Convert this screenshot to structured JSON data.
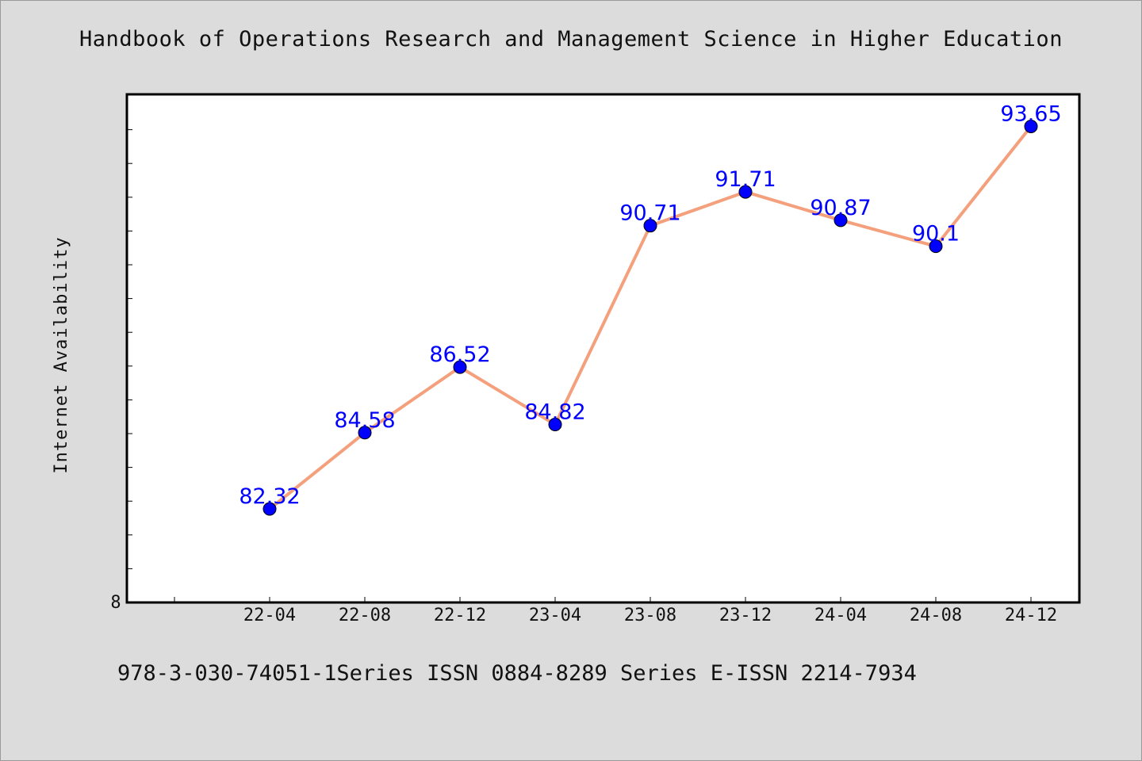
{
  "page": {
    "title": "Handbook of Operations Research and Management Science in Higher Education",
    "footer": "978-3-030-74051-1Series ISSN 0884-8289 Series E-ISSN 2214-7934"
  },
  "chart_data": {
    "type": "line",
    "title": "Handbook of Operations Research and Management Science in Higher Education",
    "xlabel": "",
    "ylabel": "Internet Availability",
    "categories": [
      "22-04",
      "22-08",
      "22-12",
      "23-04",
      "23-08",
      "23-12",
      "24-04",
      "24-08",
      "24-12"
    ],
    "series": [
      {
        "values": [
          82.32,
          84.58,
          86.52,
          84.82,
          90.71,
          91.71,
          90.87,
          90.1,
          93.65
        ]
      }
    ],
    "y_tick_label": "8",
    "ylim": [
      79.55,
      94.6
    ],
    "grid": false,
    "line_color": "#f4a07c",
    "marker_color": "#0000ff",
    "label_color": "#0000ff",
    "data_labels": [
      "82.32",
      "84.58",
      "86.52",
      "84.82",
      "90.71",
      "91.71",
      "90.87",
      "90.1",
      "93.65"
    ]
  }
}
